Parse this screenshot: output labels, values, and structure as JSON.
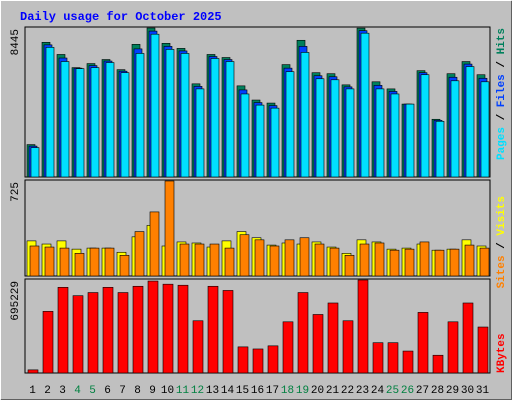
{
  "title": "Daily usage for October 2025",
  "categories": [
    "1",
    "2",
    "3",
    "4",
    "5",
    "6",
    "7",
    "8",
    "9",
    "10",
    "11",
    "12",
    "13",
    "14",
    "15",
    "16",
    "17",
    "18",
    "19",
    "20",
    "21",
    "22",
    "23",
    "24",
    "25",
    "26",
    "27",
    "28",
    "29",
    "30",
    "31"
  ],
  "category_colors": [
    "#000000",
    "#000000",
    "#000000",
    "#008040",
    "#008040",
    "#000000",
    "#000000",
    "#000000",
    "#000000",
    "#000000",
    "#008040",
    "#008040",
    "#000000",
    "#000000",
    "#000000",
    "#000000",
    "#000000",
    "#008040",
    "#008040",
    "#000000",
    "#000000",
    "#000000",
    "#000000",
    "#000000",
    "#008040",
    "#008040",
    "#000000",
    "#000000",
    "#000000",
    "#000000",
    "#000000"
  ],
  "legend_separator": "/",
  "chart_data": [
    {
      "type": "bar",
      "ylim": [
        0,
        8445
      ],
      "yticks": [
        8445
      ],
      "series": [
        {
          "name": "Pages",
          "color": "#00e0ff",
          "values": [
            1665,
            7347,
            6544,
            6142,
            6199,
            6486,
            5912,
            7003,
            8093,
            7232,
            7003,
            4994,
            6716,
            6544,
            4707,
            4075,
            3903,
            5970,
            7060,
            5568,
            5510,
            4994,
            8151,
            4994,
            4707,
            4133,
            5797,
            3157,
            5453,
            6257,
            5396
          ]
        },
        {
          "name": "Files",
          "color": "#0040ff",
          "values": [
            1751,
            7490,
            6744,
            6170,
            6314,
            6572,
            5998,
            7261,
            8269,
            7404,
            7146,
            5137,
            6830,
            6658,
            4936,
            4218,
            4046,
            6170,
            7404,
            5740,
            5682,
            5108,
            8294,
            5195,
            4850,
            4133,
            5912,
            3214,
            5654,
            6400,
            5596
          ]
        },
        {
          "name": "Hits",
          "color": "#00805c",
          "values": [
            1837,
            7634,
            6945,
            6199,
            6429,
            6658,
            6084,
            7519,
            8445,
            7577,
            7290,
            5281,
            6945,
            6773,
            5166,
            4362,
            4190,
            6371,
            7749,
            5912,
            5855,
            5223,
            8438,
            5396,
            4994,
            4133,
            6027,
            3272,
            5855,
            6544,
            5797
          ]
        }
      ]
    },
    {
      "type": "bar",
      "ylim": [
        0,
        725
      ],
      "yticks": [
        725
      ],
      "series": [
        {
          "name": "Sites",
          "color": "#ff8000",
          "values": [
            229,
            221,
            213,
            173,
            213,
            213,
            158,
            339,
            489,
            725,
            244,
            244,
            244,
            213,
            315,
            276,
            229,
            276,
            292,
            244,
            213,
            158,
            244,
            252,
            197,
            205,
            260,
            197,
            205,
            236,
            213
          ]
        },
        {
          "name": "Visits",
          "color": "#ffff00",
          "values": [
            268,
            244,
            268,
            205,
            213,
            213,
            181,
            299,
            386,
            229,
            260,
            252,
            221,
            268,
            339,
            292,
            236,
            252,
            244,
            260,
            221,
            173,
            276,
            260,
            205,
            213,
            244,
            197,
            205,
            276,
            229
          ]
        }
      ]
    },
    {
      "type": "bar",
      "ylim": [
        0,
        695229
      ],
      "yticks": [
        695229
      ],
      "series": [
        {
          "name": "KBytes",
          "color": "#ff0000",
          "values": [
            23433,
            460849,
            640502,
            578014,
            601447,
            640502,
            601447,
            648313,
            687368,
            663935,
            656124,
            390550,
            648313,
            617069,
            195275,
            179653,
            203086,
            382739,
            601447,
            437416,
            523337,
            390550,
            695229,
            226519,
            226519,
            164031,
            453038,
            132787,
            382739,
            523337,
            343684
          ]
        }
      ]
    }
  ]
}
